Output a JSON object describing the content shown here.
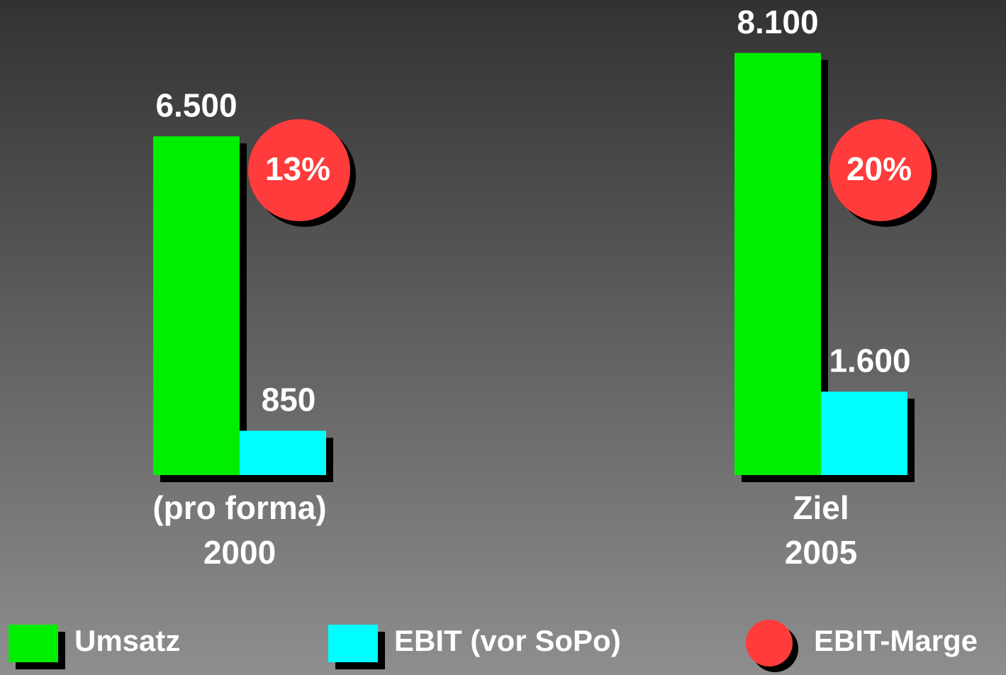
{
  "chart_data": {
    "type": "bar",
    "categories": [
      [
        "(pro forma)",
        "2000"
      ],
      [
        "Ziel",
        "2005"
      ]
    ],
    "series": [
      {
        "name": "Umsatz",
        "color": "#00ee00",
        "values": [
          6500,
          8100
        ],
        "value_labels": [
          "6.500",
          "8.100"
        ]
      },
      {
        "name": "EBIT (vor SoPo)",
        "color": "#00ffff",
        "values": [
          850,
          1600
        ],
        "value_labels": [
          "850",
          "1.600"
        ]
      }
    ],
    "margins": {
      "name": "EBIT-Marge",
      "color": "#ff3b3b",
      "values": [
        13,
        20
      ],
      "value_labels": [
        "13%",
        "20%"
      ]
    }
  }
}
